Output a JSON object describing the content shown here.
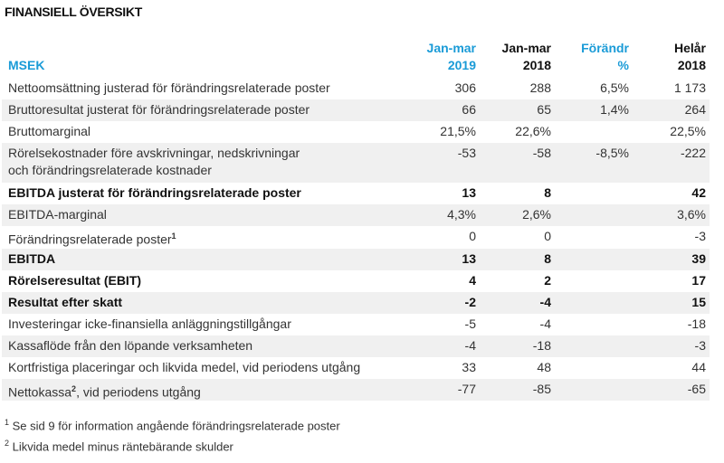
{
  "title": "FINANSIELL ÖVERSIKT",
  "header": {
    "label": "MSEK",
    "columns": [
      {
        "line1": "Jan-mar",
        "line2": "2019",
        "accent": true
      },
      {
        "line1": "Jan-mar",
        "line2": "2018",
        "accent": false
      },
      {
        "line1": "Förändr",
        "line2": "%",
        "accent": true
      },
      {
        "line1": "Helår",
        "line2": "2018",
        "accent": false
      }
    ]
  },
  "accent_color": "#1a9bd7",
  "rows": [
    {
      "label": "Nettoomsättning justerad för förändringsrelaterade poster",
      "values": [
        "306",
        "288",
        "6,5%",
        "1 173"
      ],
      "bold": false,
      "gray": false
    },
    {
      "label": "Bruttoresultat justerat för förändringsrelaterade poster",
      "values": [
        "66",
        "65",
        "1,4%",
        "264"
      ],
      "bold": false,
      "gray": true
    },
    {
      "label": "Bruttomarginal",
      "values": [
        "21,5%",
        "22,6%",
        "",
        "22,5%"
      ],
      "bold": false,
      "gray": false
    },
    {
      "label": "Rörelsekostnader före avskrivningar, nedskrivningar och förändringsrelaterade kostnader",
      "values": [
        "-53",
        "-58",
        "-8,5%",
        "-222"
      ],
      "bold": false,
      "gray": true,
      "tall": true
    },
    {
      "label": "EBITDA justerat för förändringsrelaterade poster",
      "values": [
        "13",
        "8",
        "",
        "42"
      ],
      "bold": true,
      "gray": false
    },
    {
      "label": "EBITDA-marginal",
      "values": [
        "4,3%",
        "2,6%",
        "",
        "3,6%"
      ],
      "bold": false,
      "gray": true
    },
    {
      "label": "Förändringsrelaterade poster",
      "sup": "1",
      "values": [
        "0",
        "0",
        "",
        "-3"
      ],
      "bold": false,
      "gray": false
    },
    {
      "label": "EBITDA",
      "values": [
        "13",
        "8",
        "",
        "39"
      ],
      "bold": true,
      "gray": true
    },
    {
      "label": "Rörelseresultat (EBIT)",
      "values": [
        "4",
        "2",
        "",
        "17"
      ],
      "bold": true,
      "gray": false
    },
    {
      "label": "Resultat efter skatt",
      "values": [
        "-2",
        "-4",
        "",
        "15"
      ],
      "bold": true,
      "gray": true
    },
    {
      "label": "Investeringar icke-finansiella anläggningstillgångar",
      "values": [
        "-5",
        "-4",
        "",
        "-18"
      ],
      "bold": false,
      "gray": false
    },
    {
      "label": "Kassaflöde från den löpande verksamheten",
      "values": [
        "-4",
        "-18",
        "",
        "-3"
      ],
      "bold": false,
      "gray": true
    },
    {
      "label": "Kortfristiga placeringar och likvida medel, vid periodens utgång",
      "values": [
        "33",
        "48",
        "",
        "44"
      ],
      "bold": false,
      "gray": false
    },
    {
      "label": "Nettokassa",
      "sup": "2",
      "label_suffix": ", vid periodens utgång",
      "values": [
        "-77",
        "-85",
        "",
        "-65"
      ],
      "bold": false,
      "gray": true
    }
  ],
  "footnotes": [
    {
      "mark": "1",
      "text": "Se sid 9 för information angående förändringsrelaterade poster"
    },
    {
      "mark": "2",
      "text": "Likvida medel minus räntebärande skulder"
    }
  ]
}
